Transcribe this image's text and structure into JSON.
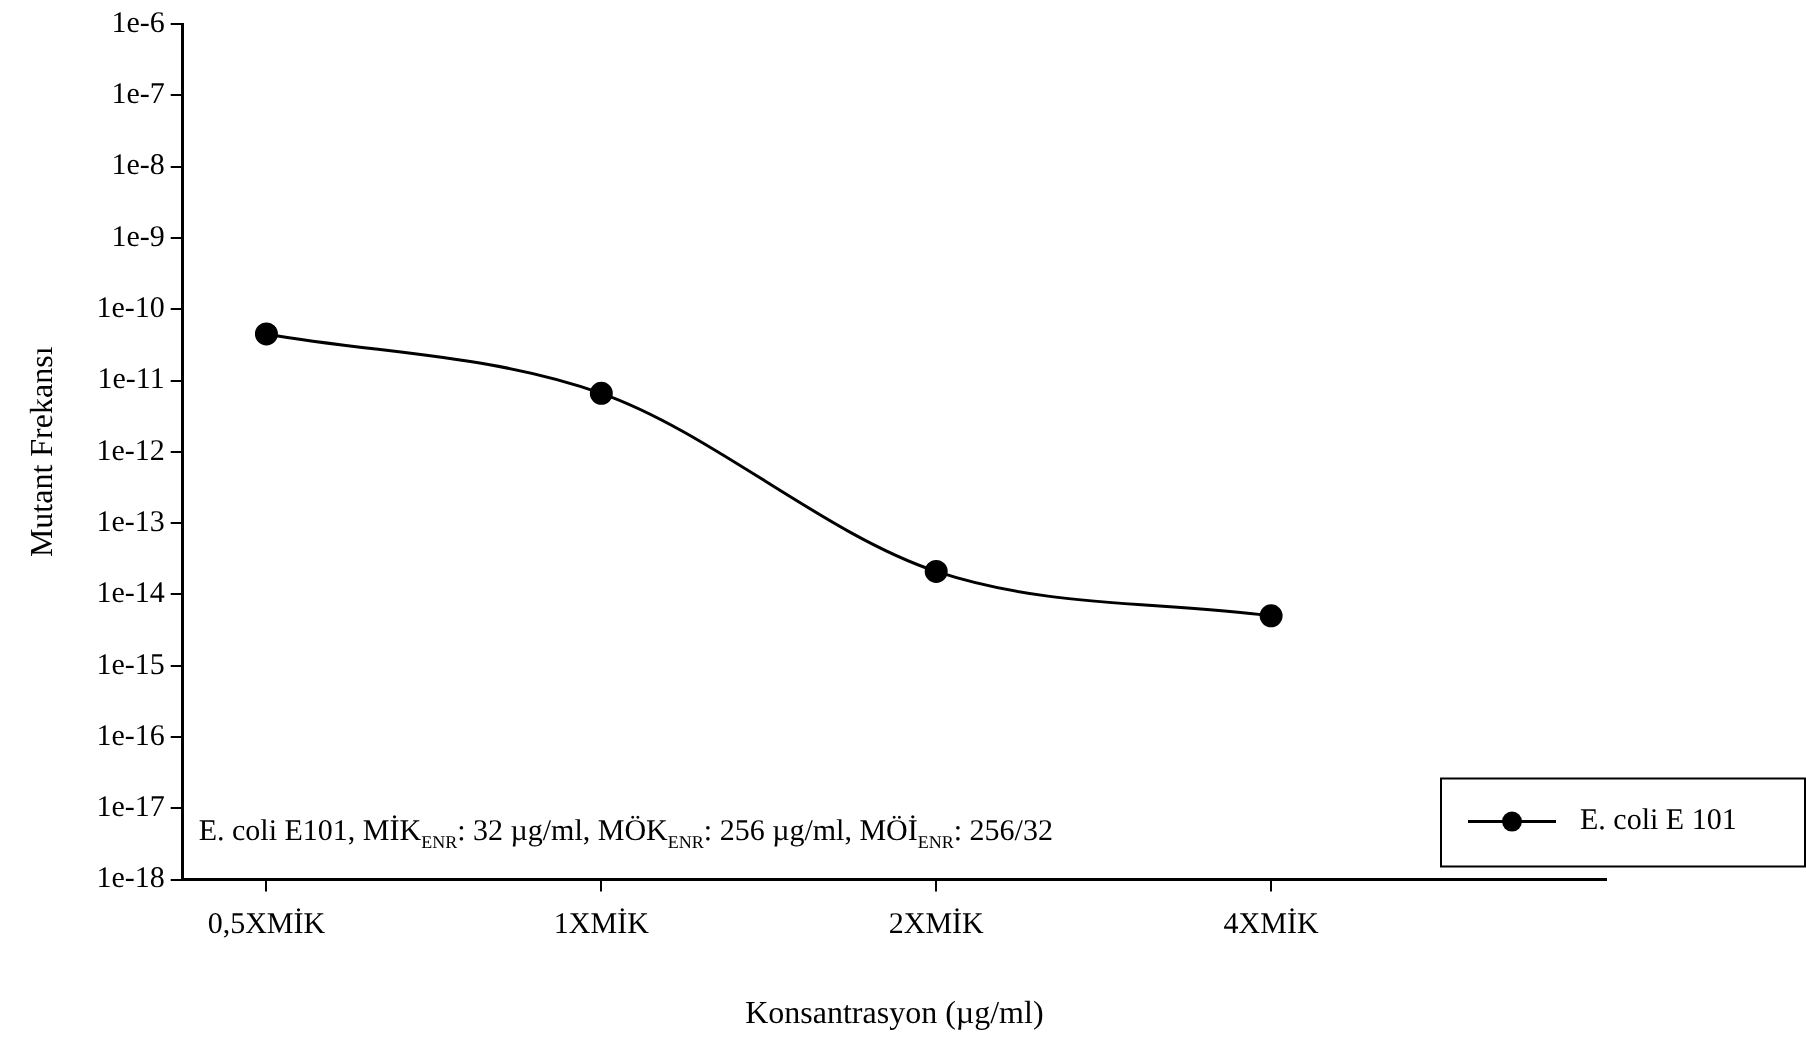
{
  "chart_data": {
    "type": "line",
    "xlabel": "Konsantrasyon (µg/ml)",
    "ylabel": "Mutant Frekansı",
    "categories": [
      "0,5XMİK",
      "1XMİK",
      "2XMİK",
      "4XMİK"
    ],
    "series": [
      {
        "name": "E. coli E 101",
        "color": "#000000",
        "values": [
          4.5e-11,
          6.6e-12,
          2.1e-14,
          5e-15
        ]
      }
    ],
    "log": "y",
    "ylim": [
      1e-18,
      1e-06
    ],
    "yticks": [
      {
        "value": 1e-18,
        "label": "1e-18"
      },
      {
        "value": 1e-17,
        "label": "1e-17"
      },
      {
        "value": 1e-16,
        "label": "1e-16"
      },
      {
        "value": 1e-15,
        "label": "1e-15"
      },
      {
        "value": 1e-14,
        "label": "1e-14"
      },
      {
        "value": 1e-13,
        "label": "1e-13"
      },
      {
        "value": 1e-12,
        "label": "1e-12"
      },
      {
        "value": 1e-11,
        "label": "1e-11"
      },
      {
        "value": 1e-10,
        "label": "1e-10"
      },
      {
        "value": 1e-09,
        "label": "1e-9"
      },
      {
        "value": 1e-08,
        "label": "1e-8"
      },
      {
        "value": 1e-07,
        "label": "1e-7"
      },
      {
        "value": 1e-06,
        "label": "1e-6"
      }
    ],
    "annotations": [
      "E. coli E101, MİK$_{ENR}$: 32 µg/ml, MÖK$_{ENR}$: 256 µg/ml, MÖİ$_{ENR}$: 256/32"
    ],
    "legend": "bottom right",
    "marker": "circle",
    "line_style": "solid",
    "grid": false
  }
}
